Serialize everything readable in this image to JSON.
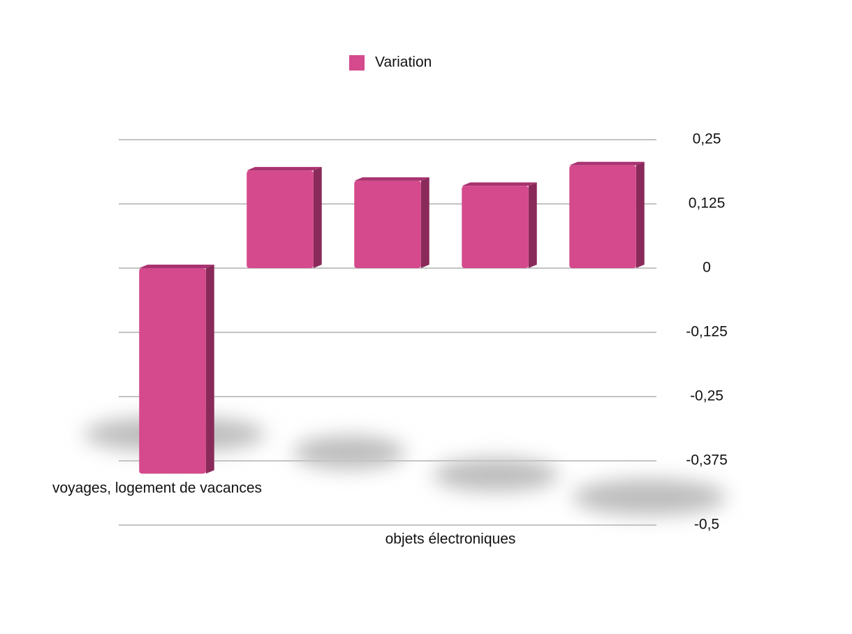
{
  "chart_data": {
    "type": "bar",
    "categories": [
      "voyages, logement de vacances",
      null,
      "objets électroniques",
      null,
      null
    ],
    "series": [
      {
        "name": "Variation",
        "color": "#d44a8c",
        "values": [
          -0.4,
          0.19,
          0.17,
          0.16,
          0.2
        ]
      }
    ],
    "ylim": [
      -0.5,
      0.25
    ],
    "yticks": [
      {
        "value": 0.25,
        "label": "0,25"
      },
      {
        "value": 0.125,
        "label": "0,125"
      },
      0,
      {
        "value": -0.125,
        "label": "-0,125"
      },
      {
        "value": -0.25,
        "label": "-0,25"
      },
      {
        "value": -0.375,
        "label": "-0,375"
      },
      {
        "value": -0.5,
        "label": "-0,5"
      }
    ],
    "grid": true,
    "legend": "top"
  }
}
